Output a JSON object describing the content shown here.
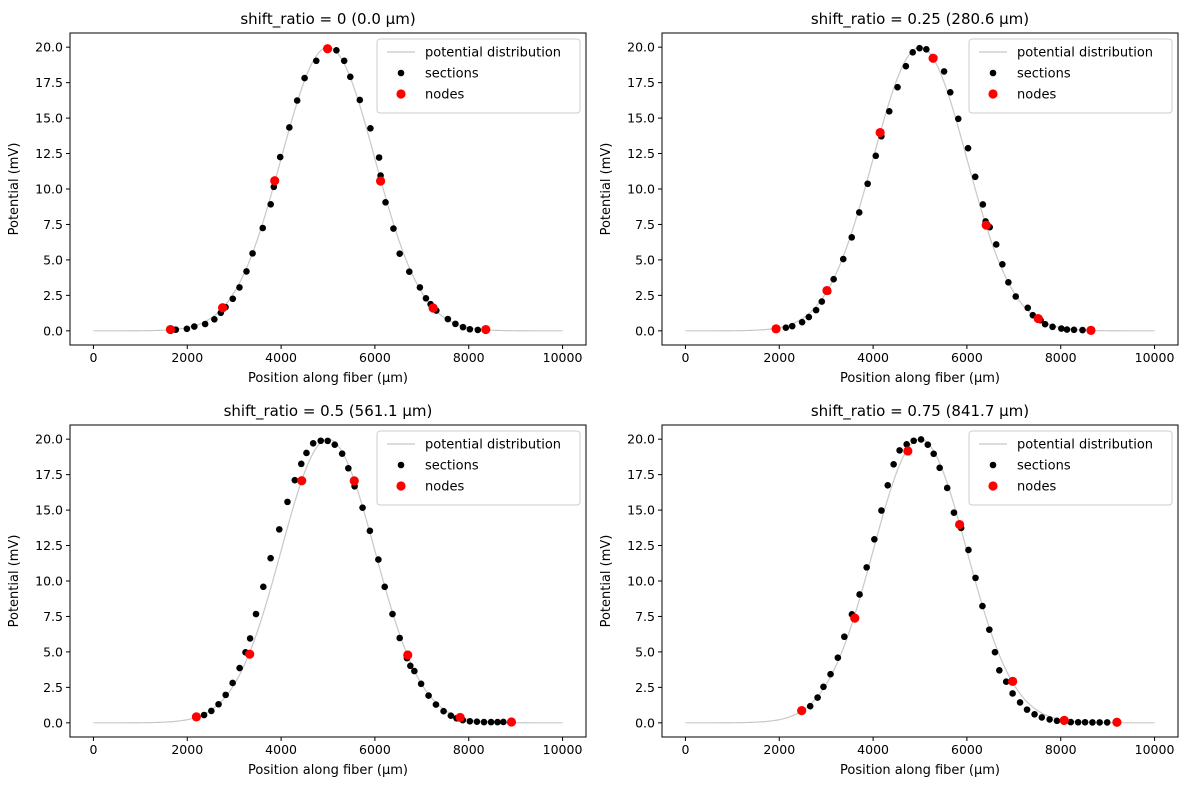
{
  "figure": {
    "legend_labels": [
      "potential distribution",
      "sections",
      "nodes"
    ],
    "legend_location": "upper right",
    "colors": {
      "curve": "#c8c8c8",
      "sections": "#000000",
      "nodes": "#ff0000"
    }
  },
  "chart_data": [
    {
      "type": "scatter",
      "title": "shift_ratio = 0 (0.0 μm)",
      "xlabel": "Position along fiber (μm)",
      "ylabel": "Potential (mV)",
      "xlim": [
        -500,
        10500
      ],
      "ylim": [
        -1.0,
        21.0
      ],
      "xticks": [
        "0",
        "2000",
        "4000",
        "6000",
        "8000",
        "10000"
      ],
      "yticks": [
        "0.0",
        "2.5",
        "5.0",
        "7.5",
        "10.0",
        "12.5",
        "15.0",
        "17.5",
        "20.0"
      ],
      "grid": false,
      "series": [
        {
          "name": "potential distribution",
          "kind": "line",
          "model": "gaussian",
          "x_range": [
            0,
            10000
          ],
          "center": 5000,
          "amplitude": 20.0,
          "sigma": 1000
        },
        {
          "name": "sections",
          "kind": "scatter",
          "x": [
            1641,
            1756,
            1992,
            2150,
            2381,
            2578,
            2715,
            2815,
            2970,
            3113,
            3262,
            3392,
            3609,
            3779,
            3845,
            3981,
            4176,
            4343,
            4501,
            4750,
            4998,
            5179,
            5345,
            5475,
            5678,
            5904,
            6089,
            6121,
            6226,
            6395,
            6528,
            6733,
            6959,
            7088,
            7187,
            7251,
            7309,
            7555,
            7716,
            7878,
            8024,
            8194,
            8364
          ],
          "y": [
            0.09,
            0.08,
            0.14,
            0.3,
            0.48,
            0.81,
            1.27,
            1.67,
            2.26,
            3.06,
            4.19,
            5.46,
            7.25,
            8.92,
            10.15,
            12.25,
            14.34,
            16.24,
            17.82,
            19.04,
            19.9,
            19.78,
            19.04,
            17.91,
            16.28,
            14.28,
            12.22,
            10.95,
            9.06,
            7.21,
            5.44,
            4.17,
            3.06,
            2.29,
            1.88,
            1.67,
            1.43,
            0.83,
            0.49,
            0.26,
            0.11,
            0.06,
            0.05
          ]
        },
        {
          "name": "nodes",
          "kind": "scatter",
          "x": [
            1641,
            2753,
            3864,
            4991,
            6121,
            7241,
            8364
          ],
          "y": [
            0.09,
            1.63,
            10.58,
            19.89,
            10.56,
            1.61,
            0.09
          ]
        }
      ]
    },
    {
      "type": "scatter",
      "title": "shift_ratio = 0.25 (280.6 μm)",
      "xlabel": "Position along fiber (μm)",
      "ylabel": "Potential (mV)",
      "xlim": [
        -500,
        10500
      ],
      "ylim": [
        -1.0,
        21.0
      ],
      "xticks": [
        "0",
        "2000",
        "4000",
        "6000",
        "8000",
        "10000"
      ],
      "yticks": [
        "0.0",
        "2.5",
        "5.0",
        "7.5",
        "10.0",
        "12.5",
        "15.0",
        "17.5",
        "20.0"
      ],
      "grid": false,
      "series": [
        {
          "name": "potential distribution",
          "kind": "line",
          "model": "gaussian",
          "x_range": [
            0,
            10000
          ],
          "center": 5000,
          "amplitude": 20.0,
          "sigma": 1000
        },
        {
          "name": "sections",
          "kind": "scatter",
          "x": [
            1932,
            2140,
            2276,
            2487,
            2630,
            2785,
            2907,
            3042,
            3159,
            3364,
            3545,
            3705,
            3884,
            4057,
            4176,
            4345,
            4521,
            4699,
            4845,
            4990,
            5135,
            5305,
            5514,
            5645,
            5816,
            6024,
            6177,
            6340,
            6398,
            6486,
            6625,
            6756,
            6884,
            7041,
            7297,
            7405,
            7570,
            7667,
            7826,
            8013,
            8133,
            8283,
            8465,
            8644
          ],
          "y": [
            0.15,
            0.22,
            0.33,
            0.61,
            0.97,
            1.46,
            2.06,
            2.77,
            3.64,
            5.06,
            6.59,
            8.35,
            10.37,
            12.34,
            13.72,
            15.48,
            17.18,
            18.66,
            19.64,
            19.93,
            19.85,
            19.26,
            18.29,
            16.82,
            14.95,
            12.88,
            10.86,
            8.91,
            7.71,
            7.31,
            6.09,
            4.69,
            3.42,
            2.42,
            1.62,
            1.1,
            0.75,
            0.47,
            0.28,
            0.16,
            0.09,
            0.07,
            0.05,
            0.03
          ]
        },
        {
          "name": "nodes",
          "kind": "scatter",
          "x": [
            1932,
            3016,
            4150,
            5279,
            6412,
            7521,
            8644
          ],
          "y": [
            0.14,
            2.84,
            13.98,
            19.22,
            7.45,
            0.86,
            0.03
          ]
        }
      ]
    },
    {
      "type": "scatter",
      "title": "shift_ratio = 0.5 (561.1 μm)",
      "xlabel": "Position along fiber (μm)",
      "ylabel": "Potential (mV)",
      "xlim": [
        -500,
        10500
      ],
      "ylim": [
        -1.0,
        21.0
      ],
      "xticks": [
        "0",
        "2000",
        "4000",
        "6000",
        "8000",
        "10000"
      ],
      "yticks": [
        "0.0",
        "2.5",
        "5.0",
        "7.5",
        "10.0",
        "12.5",
        "15.0",
        "17.5",
        "20.0"
      ],
      "grid": false,
      "series": [
        {
          "name": "potential distribution",
          "kind": "line",
          "model": "gaussian",
          "x_range": [
            0,
            10000
          ],
          "center": 5000,
          "amplitude": 20.0,
          "sigma": 1000
        },
        {
          "name": "sections",
          "kind": "scatter",
          "x": [
            2211,
            2358,
            2513,
            2667,
            2819,
            2967,
            3116,
            3241,
            3339,
            3465,
            3621,
            3777,
            3961,
            4136,
            4292,
            4430,
            4541,
            4684,
            4845,
            4994,
            5144,
            5302,
            5433,
            5567,
            5737,
            5893,
            6074,
            6209,
            6375,
            6528,
            6683,
            6755,
            6841,
            6985,
            7144,
            7301,
            7464,
            7619,
            7740,
            7873,
            8024,
            8175,
            8326,
            8476,
            8614,
            8739,
            8911
          ],
          "y": [
            0.37,
            0.55,
            0.84,
            1.31,
            1.97,
            2.81,
            3.86,
            4.97,
            5.95,
            7.67,
            9.59,
            11.61,
            13.64,
            15.58,
            17.11,
            18.26,
            19.03,
            19.71,
            19.89,
            19.88,
            19.61,
            18.98,
            17.95,
            16.68,
            15.17,
            13.54,
            11.51,
            9.59,
            7.67,
            5.98,
            4.56,
            4.02,
            3.65,
            2.75,
            1.92,
            1.29,
            0.82,
            0.5,
            0.32,
            0.19,
            0.11,
            0.08,
            0.05,
            0.05,
            0.05,
            0.06,
            0.05
          ]
        },
        {
          "name": "nodes",
          "kind": "scatter",
          "x": [
            2194,
            3331,
            4440,
            5560,
            6700,
            7817,
            8911
          ],
          "y": [
            0.42,
            4.84,
            17.07,
            17.06,
            4.78,
            0.38,
            0.06
          ]
        }
      ]
    },
    {
      "type": "scatter",
      "title": "shift_ratio = 0.75 (841.7 μm)",
      "xlabel": "Position along fiber (μm)",
      "ylabel": "Potential (mV)",
      "xlim": [
        -500,
        10500
      ],
      "ylim": [
        -1.0,
        21.0
      ],
      "xticks": [
        "0",
        "2000",
        "4000",
        "6000",
        "8000",
        "10000"
      ],
      "yticks": [
        "0.0",
        "2.5",
        "5.0",
        "7.5",
        "10.0",
        "12.5",
        "15.0",
        "17.5",
        "20.0"
      ],
      "grid": false,
      "series": [
        {
          "name": "potential distribution",
          "kind": "line",
          "model": "gaussian",
          "x_range": [
            0,
            10000
          ],
          "center": 5000,
          "amplitude": 20.0,
          "sigma": 1000
        },
        {
          "name": "sections",
          "kind": "scatter",
          "x": [
            2478,
            2659,
            2817,
            2942,
            3093,
            3249,
            3387,
            3548,
            3712,
            3863,
            4027,
            4178,
            4312,
            4438,
            4565,
            4716,
            4866,
            5023,
            5166,
            5292,
            5419,
            5580,
            5724,
            5877,
            6033,
            6183,
            6331,
            6478,
            6598,
            6691,
            6838,
            6974,
            7133,
            7282,
            7442,
            7597,
            7763,
            7920,
            8067,
            8214,
            8371,
            8519,
            8676,
            8830,
            8990,
            9198
          ],
          "y": [
            0.91,
            1.17,
            1.78,
            2.54,
            3.43,
            4.59,
            6.07,
            7.65,
            9.05,
            10.96,
            12.94,
            14.97,
            16.75,
            18.23,
            19.21,
            19.64,
            19.89,
            19.98,
            19.61,
            18.97,
            17.98,
            16.56,
            14.82,
            13.74,
            12.19,
            10.22,
            8.23,
            6.57,
            4.98,
            3.7,
            2.9,
            2.07,
            1.44,
            0.93,
            0.6,
            0.38,
            0.24,
            0.14,
            0.09,
            0.05,
            0.04,
            0.04,
            0.03,
            0.03,
            0.03,
            0.04
          ]
        },
        {
          "name": "nodes",
          "kind": "scatter",
          "x": [
            2478,
            3609,
            4741,
            5844,
            6976,
            8075,
            9198
          ],
          "y": [
            0.86,
            7.38,
            19.17,
            13.98,
            2.92,
            0.17,
            0.04
          ]
        }
      ]
    }
  ]
}
